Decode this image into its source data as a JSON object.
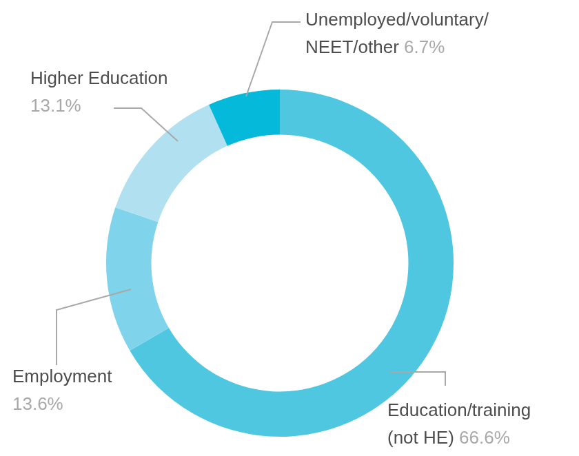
{
  "chart_data": {
    "type": "doughnut",
    "categories": [
      "Education/training (not HE)",
      "Employment",
      "Higher Education",
      "Unemployed/voluntary/NEET/other"
    ],
    "values": [
      66.6,
      13.6,
      13.1,
      6.7
    ],
    "value_labels": [
      "66.6%",
      "13.6%",
      "13.1%",
      "6.7%"
    ],
    "colors": [
      "#50c7e1",
      "#7fd3ea",
      "#b1e1f0",
      "#05b9da"
    ],
    "data_labels": true
  }
}
